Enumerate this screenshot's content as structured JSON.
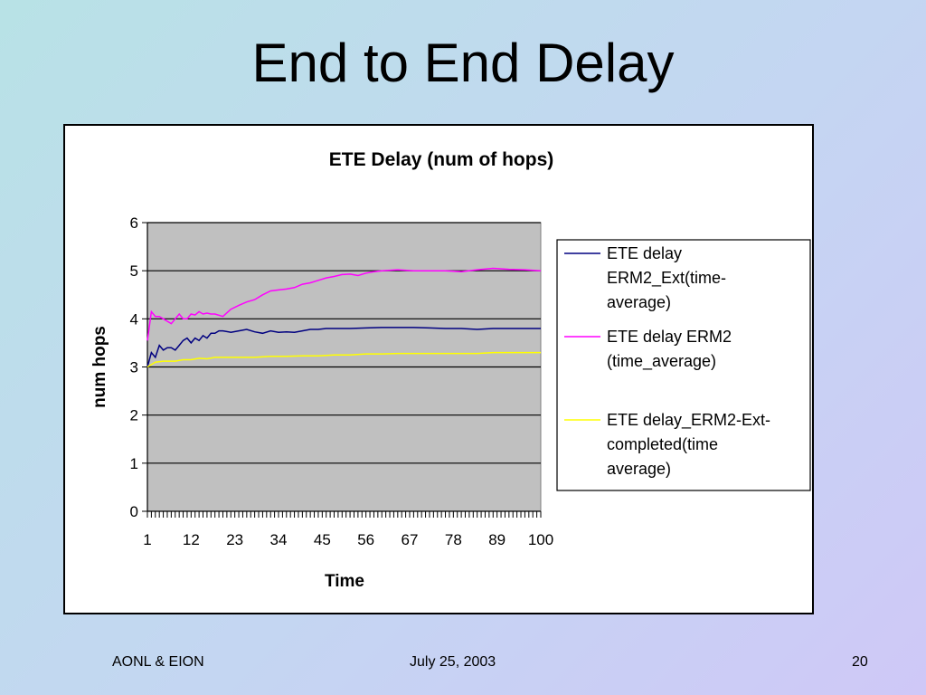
{
  "slide": {
    "title": "End to End Delay",
    "footer_left": "AONL & EION",
    "footer_center": "July 25, 2003",
    "footer_right": "20"
  },
  "chart_data": {
    "type": "line",
    "title": "ETE Delay (num of hops)",
    "xlabel": "Time",
    "ylabel": "num hops",
    "xlim": [
      1,
      100
    ],
    "ylim": [
      0,
      6
    ],
    "x_tick_labels": [
      "1",
      "12",
      "23",
      "34",
      "45",
      "56",
      "67",
      "78",
      "89",
      "100"
    ],
    "y_tick_labels": [
      "0",
      "1",
      "2",
      "3",
      "4",
      "5",
      "6"
    ],
    "grid": true,
    "plot_background": "#c0c0c0",
    "legend_position": "right",
    "series": [
      {
        "name": "ETE delay ERM2_Ext(time-average)",
        "legend_lines": [
          "ETE delay",
          "ERM2_Ext(time-",
          "average)"
        ],
        "color": "#000080",
        "x": [
          1,
          2,
          3,
          4,
          5,
          6,
          7,
          8,
          9,
          10,
          11,
          12,
          13,
          14,
          15,
          16,
          17,
          18,
          19,
          20,
          22,
          24,
          26,
          28,
          30,
          32,
          34,
          36,
          38,
          40,
          42,
          44,
          46,
          48,
          50,
          52,
          56,
          60,
          64,
          68,
          72,
          76,
          80,
          84,
          88,
          92,
          96,
          100
        ],
        "y": [
          3.0,
          3.3,
          3.2,
          3.45,
          3.35,
          3.4,
          3.4,
          3.35,
          3.45,
          3.55,
          3.6,
          3.5,
          3.6,
          3.55,
          3.65,
          3.6,
          3.7,
          3.7,
          3.75,
          3.75,
          3.72,
          3.75,
          3.78,
          3.73,
          3.7,
          3.75,
          3.72,
          3.73,
          3.72,
          3.75,
          3.78,
          3.78,
          3.8,
          3.8,
          3.8,
          3.8,
          3.81,
          3.82,
          3.82,
          3.82,
          3.81,
          3.8,
          3.8,
          3.78,
          3.8,
          3.8,
          3.8,
          3.8
        ]
      },
      {
        "name": "ETE delay ERM2 (time_average)",
        "legend_lines": [
          "ETE delay ERM2",
          "(time_average)"
        ],
        "color": "#ff00ff",
        "x": [
          1,
          2,
          3,
          4,
          5,
          6,
          7,
          8,
          9,
          10,
          11,
          12,
          13,
          14,
          15,
          16,
          17,
          18,
          20,
          22,
          24,
          26,
          28,
          30,
          32,
          34,
          36,
          38,
          40,
          42,
          44,
          46,
          48,
          50,
          52,
          54,
          56,
          58,
          60,
          64,
          68,
          72,
          76,
          80,
          84,
          88,
          92,
          96,
          100
        ],
        "y": [
          3.55,
          4.15,
          4.05,
          4.05,
          4.0,
          3.95,
          3.9,
          4.0,
          4.1,
          4.0,
          4.0,
          4.1,
          4.08,
          4.15,
          4.1,
          4.12,
          4.1,
          4.1,
          4.05,
          4.2,
          4.28,
          4.35,
          4.4,
          4.5,
          4.58,
          4.6,
          4.62,
          4.65,
          4.72,
          4.75,
          4.8,
          4.85,
          4.88,
          4.92,
          4.93,
          4.9,
          4.95,
          4.98,
          5.0,
          5.02,
          5.0,
          5.0,
          5.0,
          4.98,
          5.02,
          5.05,
          5.03,
          5.02,
          5.0
        ]
      },
      {
        "name": "ETE delay_ERM2-Ext-completed(time average)",
        "legend_lines": [
          "ETE delay_ERM2-Ext-",
          "completed(time",
          "average)"
        ],
        "color": "#ffff00",
        "x": [
          1,
          3,
          5,
          8,
          10,
          12,
          14,
          16,
          18,
          20,
          24,
          28,
          32,
          36,
          40,
          44,
          48,
          52,
          56,
          60,
          64,
          68,
          72,
          76,
          80,
          84,
          88,
          92,
          96,
          100
        ],
        "y": [
          3.0,
          3.1,
          3.12,
          3.12,
          3.15,
          3.15,
          3.18,
          3.17,
          3.2,
          3.2,
          3.2,
          3.2,
          3.22,
          3.22,
          3.23,
          3.23,
          3.25,
          3.25,
          3.27,
          3.27,
          3.28,
          3.28,
          3.28,
          3.28,
          3.28,
          3.28,
          3.3,
          3.3,
          3.3,
          3.3
        ]
      }
    ]
  }
}
